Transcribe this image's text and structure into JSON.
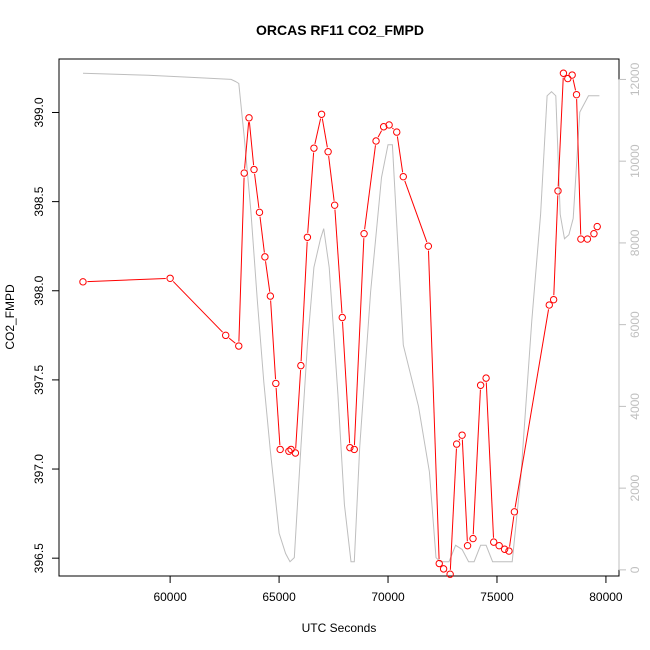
{
  "chart_data": {
    "type": "line",
    "title": "ORCAS RF11 CO2_FMPD",
    "xlabel": "UTC Seconds",
    "ylabel": "CO2_FMPD",
    "y2label": "",
    "xlim": [
      54900,
      80600
    ],
    "ylim": [
      396.4,
      399.3
    ],
    "y2lim": [
      -150,
      12500
    ],
    "xticks": [
      60000,
      65000,
      70000,
      75000,
      80000
    ],
    "yticks": [
      396.5,
      397.0,
      397.5,
      398.0,
      398.5,
      399.0
    ],
    "y2ticks": [
      0,
      2000,
      4000,
      6000,
      8000,
      10000,
      12000
    ],
    "series": [
      {
        "color": "#ff0000",
        "axis": "left",
        "marker": "open-circle",
        "x": [
          56000,
          60000,
          62550,
          63150,
          63400,
          63620,
          63850,
          64100,
          64350,
          64600,
          64850,
          65050,
          65450,
          65550,
          65750,
          66000,
          66300,
          66600,
          66950,
          67250,
          67550,
          67900,
          68250,
          68450,
          68900,
          69450,
          69800,
          70050,
          70400,
          70700,
          71850,
          72350,
          72550,
          72850,
          73150,
          73400,
          73650,
          73900,
          74250,
          74500,
          74850,
          75100,
          75350,
          75550,
          75800,
          77400,
          77600,
          77800,
          78050,
          78250,
          78450,
          78650,
          78850,
          79150,
          79450,
          79600
        ],
        "y": [
          398.05,
          398.07,
          397.75,
          397.69,
          398.66,
          398.97,
          398.68,
          398.44,
          398.19,
          397.97,
          397.48,
          397.11,
          397.1,
          397.11,
          397.09,
          397.58,
          398.3,
          398.8,
          398.99,
          398.78,
          398.48,
          397.85,
          397.12,
          397.11,
          398.32,
          398.84,
          398.92,
          398.93,
          398.89,
          398.64,
          398.25,
          396.47,
          396.44,
          396.41,
          397.14,
          397.19,
          396.57,
          396.61,
          397.47,
          397.51,
          396.59,
          396.57,
          396.55,
          396.54,
          396.76,
          397.92,
          397.95,
          398.56,
          399.22,
          399.19,
          399.21,
          399.1,
          398.29,
          398.29,
          398.32,
          398.36
        ]
      },
      {
        "color": "#bebebe",
        "axis": "right",
        "marker": "none",
        "x": [
          56000,
          59000,
          61000,
          62800,
          63000,
          63150,
          63400,
          63700,
          64000,
          64300,
          64600,
          65000,
          65300,
          65500,
          65700,
          66000,
          66300,
          66600,
          66900,
          67050,
          67300,
          67700,
          68000,
          68300,
          68450,
          68700,
          69200,
          69700,
          70000,
          70200,
          70700,
          71400,
          71900,
          72200,
          72400,
          72800,
          73100,
          73400,
          73700,
          73950,
          74250,
          74500,
          74800,
          75100,
          75400,
          75700,
          76100,
          76600,
          77000,
          77300,
          77500,
          77700,
          77900,
          78100,
          78300,
          78500,
          78800,
          79200,
          79550,
          79700
        ],
        "y": [
          12150,
          12100,
          12050,
          12000,
          11950,
          11900,
          10600,
          8800,
          6600,
          4600,
          2900,
          900,
          400,
          200,
          300,
          3000,
          5500,
          7400,
          8100,
          8350,
          7400,
          4300,
          1600,
          200,
          200,
          3000,
          6800,
          9600,
          10400,
          10400,
          5500,
          4000,
          2400,
          300,
          200,
          200,
          600,
          500,
          200,
          200,
          600,
          600,
          200,
          200,
          200,
          200,
          2300,
          6100,
          8700,
          11600,
          11700,
          11600,
          8700,
          8100,
          8200,
          8600,
          11200,
          11600,
          11600,
          11600
        ]
      }
    ]
  }
}
